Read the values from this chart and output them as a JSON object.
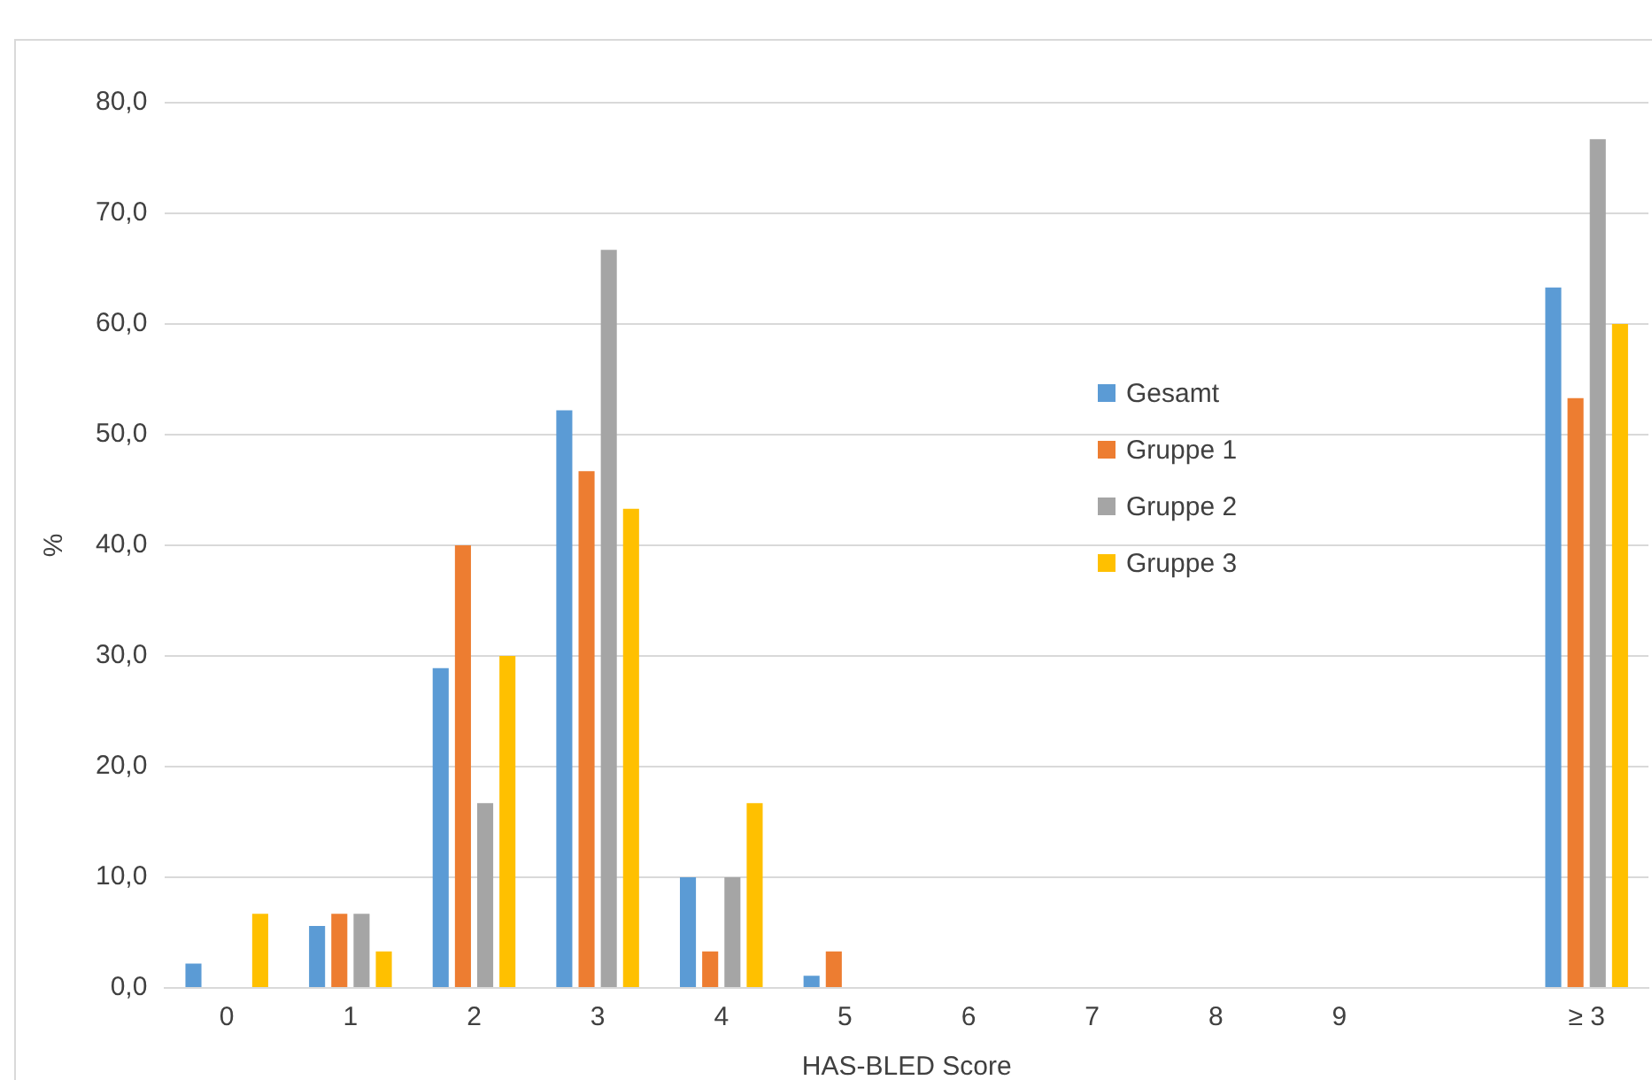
{
  "chart_data": {
    "type": "bar",
    "xlabel": "HAS-BLED Score",
    "ylabel": "%",
    "categories": [
      "0",
      "1",
      "2",
      "3",
      "4",
      "5",
      "6",
      "7",
      "8",
      "9",
      null,
      "≥ 3"
    ],
    "series": [
      {
        "name": "Gesamt",
        "color": "#5b9bd5",
        "values": [
          2.2,
          5.6,
          28.9,
          52.2,
          10.0,
          1.1,
          0,
          0,
          0,
          0,
          null,
          63.3
        ]
      },
      {
        "name": "Gruppe 1",
        "color": "#ed7d31",
        "values": [
          0,
          6.7,
          40.0,
          46.7,
          3.3,
          3.3,
          0,
          0,
          0,
          0,
          null,
          53.3
        ]
      },
      {
        "name": "Gruppe 2",
        "color": "#a5a5a5",
        "values": [
          0,
          6.7,
          16.7,
          66.7,
          10.0,
          0,
          0,
          0,
          0,
          0,
          null,
          76.7
        ]
      },
      {
        "name": "Gruppe 3",
        "color": "#ffc000",
        "values": [
          6.7,
          3.3,
          30.0,
          43.3,
          16.7,
          0,
          0,
          0,
          0,
          0,
          null,
          60.0
        ]
      }
    ],
    "ylim": [
      0,
      80
    ],
    "yticks": [
      {
        "value": 0,
        "label": "0,0"
      },
      {
        "value": 10,
        "label": "10,0"
      },
      {
        "value": 20,
        "label": "20,0"
      },
      {
        "value": 30,
        "label": "30,0"
      },
      {
        "value": 40,
        "label": "40,0"
      },
      {
        "value": 50,
        "label": "50,0"
      },
      {
        "value": 60,
        "label": "60,0"
      },
      {
        "value": 70,
        "label": "70,0"
      },
      {
        "value": 80,
        "label": "80,0"
      }
    ],
    "grid": "y",
    "legend": "right"
  }
}
